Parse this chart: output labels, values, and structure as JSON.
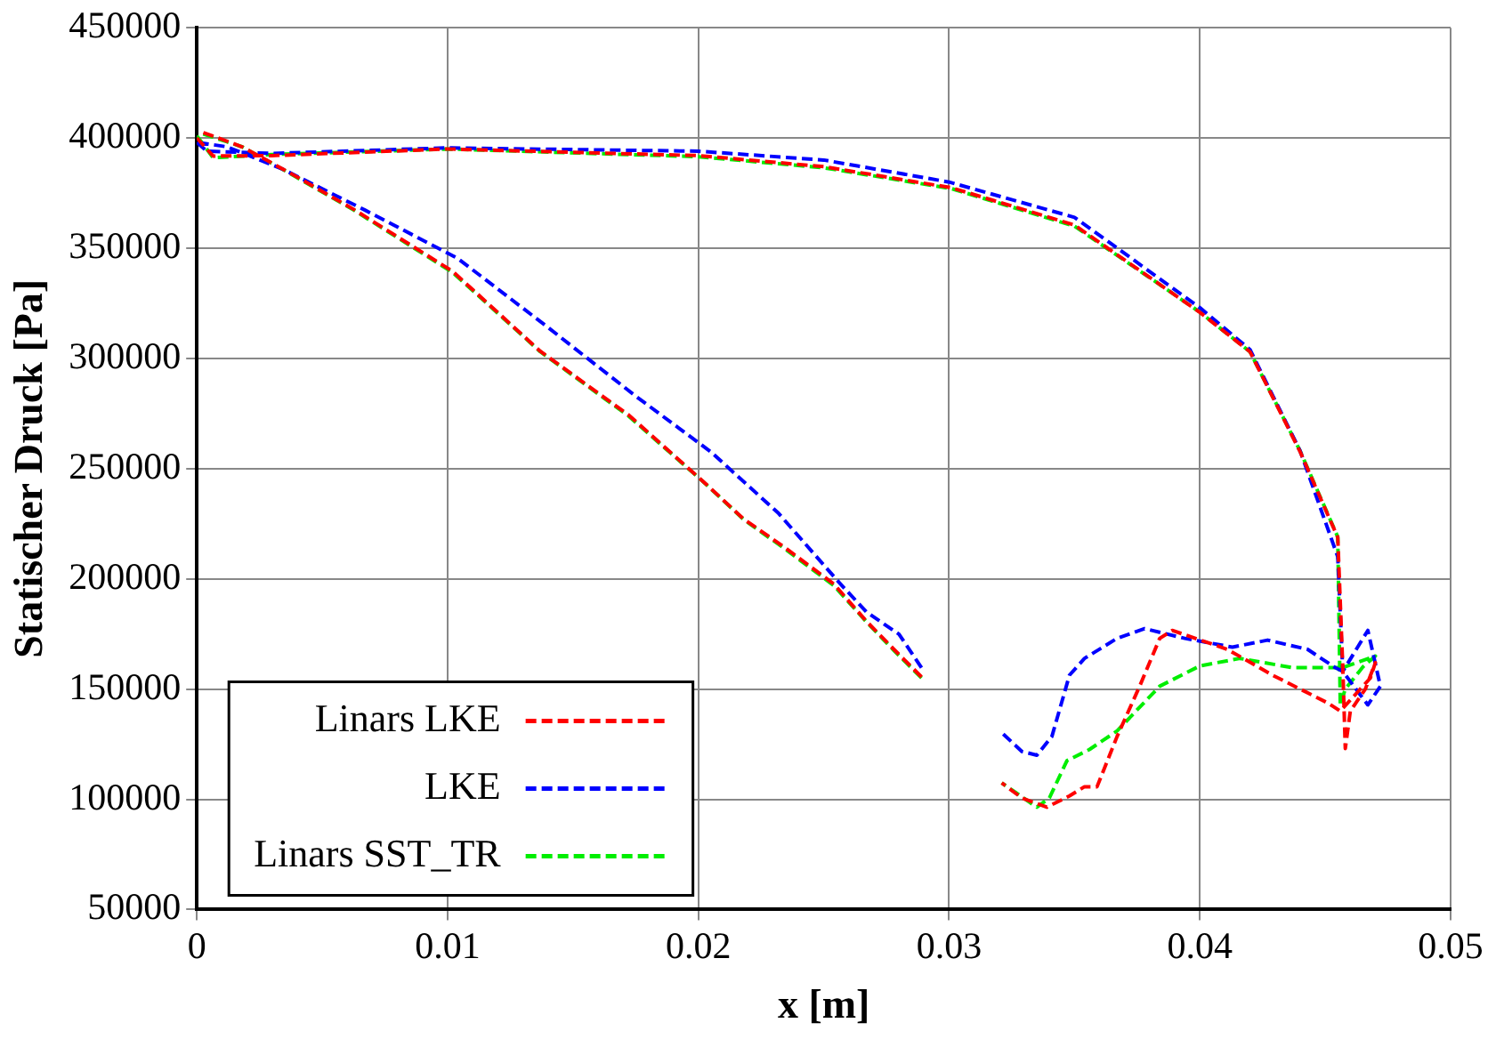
{
  "chart_data": {
    "type": "line",
    "xlabel": "x [m]",
    "ylabel": "Statischer Druck [Pa]",
    "xlim": [
      0,
      0.05
    ],
    "xticks": [
      0,
      0.01,
      0.02,
      0.03,
      0.04,
      0.05
    ],
    "ylim": [
      50000,
      450000
    ],
    "yticks": [
      50000,
      100000,
      150000,
      200000,
      250000,
      300000,
      350000,
      400000,
      450000
    ],
    "grid": true,
    "legend": "bottom left",
    "marker": "none",
    "line_style": "dashed",
    "series": [
      {
        "name": "Linars LKE",
        "color": "#ff0000",
        "x": [
          0,
          0.00065,
          0.003,
          0.01,
          0.02,
          0.025,
          0.0301,
          0.035,
          0.04,
          0.042,
          0.044,
          0.0455,
          0.0457,
          0.0458,
          0.046,
          0.0466,
          0.047,
          0.0468,
          0.0456,
          0.0451,
          0.0429,
          0.0411,
          0.0389,
          0.0384,
          0.0376,
          0.0367,
          0.0359,
          0.0354,
          0.0348,
          0.0339,
          0.0329,
          0.0321,
          0.03,
          0.0289,
          0.0278,
          0.0267,
          0.0254,
          0.0234,
          0.0218,
          0.0202,
          0.0172,
          0.0137,
          0.0102,
          0.0063,
          0.0037,
          0.0018,
          0.0002
        ],
        "values": [
          400000,
          391800,
          392000,
          395000,
          392000,
          387000,
          377400,
          360500,
          320900,
          303000,
          257600,
          218800,
          160000,
          123000,
          140000,
          150000,
          162000,
          155000,
          140000,
          143700,
          156300,
          168000,
          176600,
          173000,
          151300,
          128500,
          105700,
          105700,
          101500,
          96400,
          100600,
          107400,
          null,
          155500,
          168000,
          180800,
          197700,
          214600,
          227200,
          244100,
          274500,
          303200,
          339500,
          367300,
          384200,
          396000,
          402700
        ]
      },
      {
        "name": "LKE",
        "color": "#0000ff",
        "x": [
          0,
          0.0004,
          0.003,
          0.01,
          0.02,
          0.025,
          0.03,
          0.035,
          0.04,
          0.042,
          0.044,
          0.0455,
          0.0457,
          0.0467,
          0.0472,
          0.0467,
          0.0457,
          0.0454,
          0.0443,
          0.0427,
          0.0413,
          0.0394,
          0.0378,
          0.0367,
          0.0354,
          0.0348,
          0.0341,
          0.0335,
          0.0329,
          0.0321,
          0.03,
          0.0289,
          0.028,
          0.0267,
          0.0256,
          0.0232,
          0.0205,
          0.0175,
          0.014,
          0.0104,
          0.0067,
          0.0034,
          0.0012,
          0
        ],
        "values": [
          398000,
          394000,
          393000,
          395500,
          394000,
          390000,
          380000,
          364000,
          323000,
          304000,
          258000,
          210000,
          158000,
          176600,
          151300,
          142800,
          158000,
          159700,
          168000,
          172200,
          169000,
          173000,
          177400,
          173000,
          163900,
          156300,
          128500,
          120000,
          121700,
          130200,
          null,
          159700,
          174900,
          185000,
          198500,
          229700,
          257600,
          282900,
          314100,
          345400,
          367300,
          386000,
          396000,
          398000
        ]
      },
      {
        "name": "Linars SST_TR",
        "color": "#00ee00",
        "x": [
          0,
          0.00065,
          0.003,
          0.01,
          0.02,
          0.025,
          0.0301,
          0.035,
          0.04,
          0.042,
          0.044,
          0.0455,
          0.0456,
          0.0458,
          0.0465,
          0.047,
          0.0457,
          0.0437,
          0.0416,
          0.04,
          0.0384,
          0.0367,
          0.0356,
          0.0347,
          0.034,
          0.0335,
          0.0321,
          0.03,
          0.0289,
          0.0278,
          0.0267,
          0.0254,
          0.0234,
          0.0218,
          0.0202,
          0.0172,
          0.0137,
          0.0102,
          0.0063,
          0.0037,
          0.0018,
          0.0002
        ],
        "values": [
          401000,
          391000,
          392500,
          395000,
          391500,
          386500,
          377000,
          360000,
          321000,
          303000,
          258000,
          219000,
          142800,
          150000,
          160000,
          165000,
          159700,
          159700,
          163900,
          160500,
          151300,
          131000,
          122600,
          117500,
          100600,
          96400,
          107400,
          null,
          155000,
          167500,
          180500,
          197000,
          214000,
          227000,
          244000,
          274000,
          303000,
          339000,
          367000,
          384000,
          396000,
          402000
        ]
      }
    ]
  }
}
